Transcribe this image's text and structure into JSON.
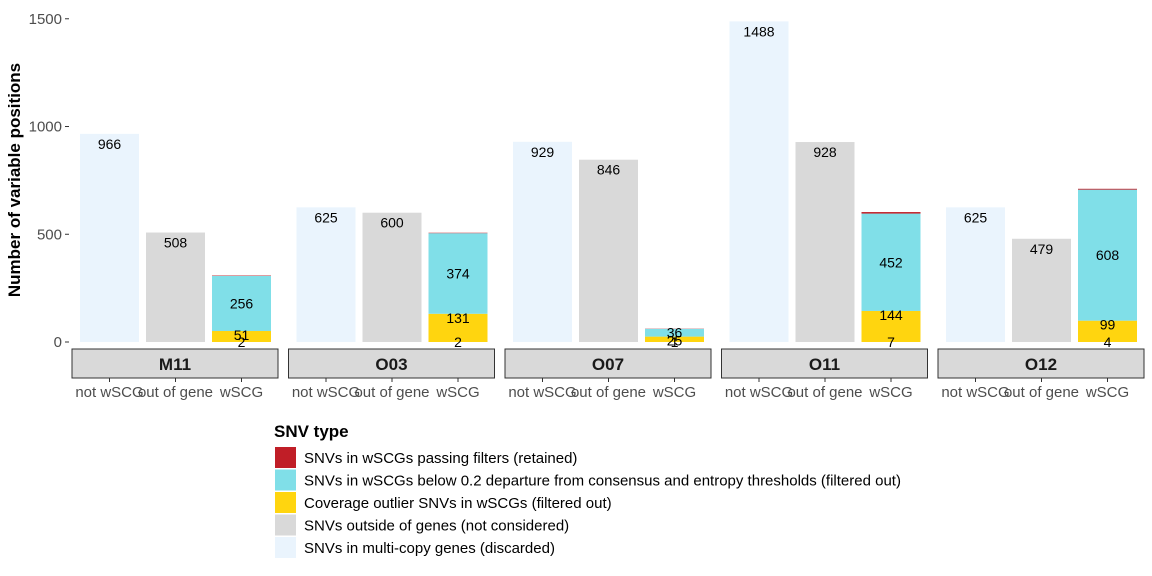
{
  "chart_data": {
    "type": "bar",
    "stacked": true,
    "faceted": true,
    "ylabel": "Number of variable positions",
    "xlabel": "",
    "ylim": [
      0,
      1550
    ],
    "yticks": [
      0,
      500,
      1000,
      1500
    ],
    "categories": [
      "not wSCG",
      "out of gene",
      "wSCG"
    ],
    "legend": {
      "title": "SNV type",
      "position": "bottom",
      "items": [
        {
          "key": "retained",
          "label": "SNVs in wSCGs passing filters (retained)",
          "color": "#C01E27"
        },
        {
          "key": "below",
          "label": "SNVs in wSCGs below 0.2 departure from consensus and entropy thresholds (filtered out)",
          "color": "#80DFE8"
        },
        {
          "key": "coverage",
          "label": "Coverage outlier SNVs in wSCGs (filtered out)",
          "color": "#FFD50F"
        },
        {
          "key": "outside",
          "label": "SNVs outside of genes (not considered)",
          "color": "#D9D9D9"
        },
        {
          "key": "multi",
          "label": "SNVs in multi-copy genes (discarded)",
          "color": "#EAF4FD"
        }
      ]
    },
    "facets": [
      {
        "name": "M11",
        "bars": [
          {
            "category": "not wSCG",
            "segments": [
              {
                "key": "multi",
                "value": 966
              }
            ]
          },
          {
            "category": "out of gene",
            "segments": [
              {
                "key": "outside",
                "value": 508
              }
            ]
          },
          {
            "category": "wSCG",
            "segments": [
              {
                "key": "coverage",
                "value": 51
              },
              {
                "key": "below",
                "value": 256
              },
              {
                "key": "retained",
                "value": 2
              }
            ]
          }
        ]
      },
      {
        "name": "O03",
        "bars": [
          {
            "category": "not wSCG",
            "segments": [
              {
                "key": "multi",
                "value": 625
              }
            ]
          },
          {
            "category": "out of gene",
            "segments": [
              {
                "key": "outside",
                "value": 600
              }
            ]
          },
          {
            "category": "wSCG",
            "segments": [
              {
                "key": "coverage",
                "value": 131
              },
              {
                "key": "below",
                "value": 374
              },
              {
                "key": "retained",
                "value": 2
              }
            ]
          }
        ]
      },
      {
        "name": "O07",
        "bars": [
          {
            "category": "not wSCG",
            "segments": [
              {
                "key": "multi",
                "value": 929
              }
            ]
          },
          {
            "category": "out of gene",
            "segments": [
              {
                "key": "outside",
                "value": 846
              }
            ]
          },
          {
            "category": "wSCG",
            "segments": [
              {
                "key": "coverage",
                "value": 25
              },
              {
                "key": "below",
                "value": 36
              },
              {
                "key": "retained",
                "value": 1
              }
            ]
          }
        ]
      },
      {
        "name": "O11",
        "bars": [
          {
            "category": "not wSCG",
            "segments": [
              {
                "key": "multi",
                "value": 1488
              }
            ]
          },
          {
            "category": "out of gene",
            "segments": [
              {
                "key": "outside",
                "value": 928
              }
            ]
          },
          {
            "category": "wSCG",
            "segments": [
              {
                "key": "coverage",
                "value": 144
              },
              {
                "key": "below",
                "value": 452
              },
              {
                "key": "retained",
                "value": 7
              }
            ]
          }
        ]
      },
      {
        "name": "O12",
        "bars": [
          {
            "category": "not wSCG",
            "segments": [
              {
                "key": "multi",
                "value": 625
              }
            ]
          },
          {
            "category": "out of gene",
            "segments": [
              {
                "key": "outside",
                "value": 479
              }
            ]
          },
          {
            "category": "wSCG",
            "segments": [
              {
                "key": "coverage",
                "value": 99
              },
              {
                "key": "below",
                "value": 608
              },
              {
                "key": "retained",
                "value": 4
              }
            ]
          }
        ]
      }
    ]
  }
}
